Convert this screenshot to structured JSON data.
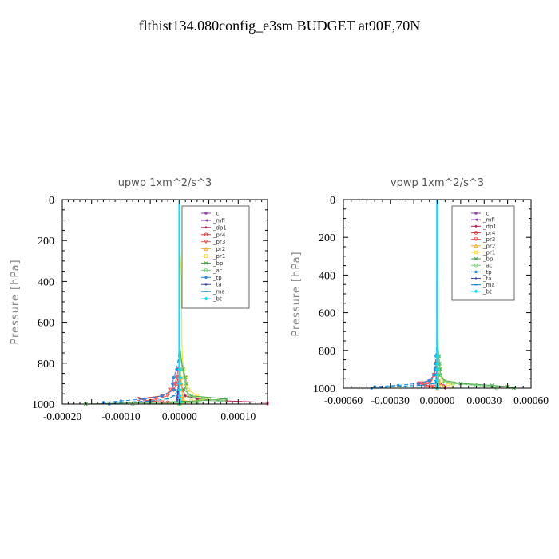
{
  "page": {
    "title": "flthist134.080config_e3sm  BUDGET at90E,70N"
  },
  "legend": {
    "entries": [
      {
        "label": "_cl",
        "color": "#8e44ad",
        "marker": "circle"
      },
      {
        "label": "_mfl",
        "color": "#7b1fa2",
        "marker": "triangle-left"
      },
      {
        "label": "_dp1",
        "color": "#c2185b",
        "marker": "diamond"
      },
      {
        "label": "_pr4",
        "color": "#e53935",
        "marker": "circle-open"
      },
      {
        "label": "_pr3",
        "color": "#ff5252",
        "marker": "triangle-down"
      },
      {
        "label": "_pr2",
        "color": "#ffa726",
        "marker": "triangle-up"
      },
      {
        "label": "_pr1",
        "color": "#fdd835",
        "marker": "square-open"
      },
      {
        "label": "_bp",
        "color": "#43a047",
        "marker": "cross"
      },
      {
        "label": "_ac",
        "color": "#76d275",
        "marker": "circle-open"
      },
      {
        "label": "_tp",
        "color": "#1e88e5",
        "marker": "star"
      },
      {
        "label": "_ta",
        "color": "#3949ab",
        "marker": "plus"
      },
      {
        "label": "_ma",
        "color": "#0288d1",
        "marker": "dash"
      },
      {
        "label": "_bt",
        "color": "#00e5ff",
        "marker": "diamond-filled"
      }
    ]
  },
  "chart_data": [
    {
      "type": "line",
      "title": "upwp   1xm^2/s^3",
      "xlabel": "",
      "ylabel": "Pressure [hPa]",
      "xlim": [
        -0.0002,
        0.00015
      ],
      "ylim": [
        1000,
        0
      ],
      "xticks": [
        -0.0002,
        -0.0001,
        0.0,
        0.0001
      ],
      "xtick_labels": [
        "-0.00020",
        "-0.00010",
        "0.00000",
        "0.00010"
      ],
      "yticks": [
        0,
        200,
        400,
        600,
        800,
        1000
      ],
      "ytick_labels": [
        "0",
        "200",
        "400",
        "600",
        "800",
        "1000"
      ],
      "y": [
        0,
        100,
        200,
        300,
        400,
        500,
        600,
        700,
        780,
        830,
        870,
        900,
        930,
        960,
        975,
        985,
        992,
        1000
      ],
      "series": [
        {
          "name": "_cl",
          "values": [
            0,
            0,
            0,
            0,
            0,
            0,
            0,
            0,
            0,
            0,
            0,
            0,
            0,
            0,
            0,
            0,
            0,
            0
          ]
        },
        {
          "name": "_mfl",
          "values": [
            0,
            0,
            0,
            0,
            0,
            0,
            0,
            0,
            0,
            0,
            0,
            -1e-06,
            -2e-06,
            -3e-06,
            -4e-06,
            -3e-06,
            -2e-06,
            0
          ]
        },
        {
          "name": "_dp1",
          "values": [
            0,
            0,
            0,
            0,
            0,
            0,
            0,
            0,
            0,
            1e-06,
            2e-06,
            3e-06,
            5e-06,
            1e-05,
            3e-05,
            8e-05,
            0.00015,
            0.00015
          ]
        },
        {
          "name": "_pr4",
          "values": [
            0,
            0,
            0,
            0,
            0,
            0,
            0,
            0,
            0,
            0,
            -2e-06,
            -5e-06,
            -1e-05,
            -3e-05,
            -7e-05,
            -5e-05,
            -2e-05,
            0
          ]
        },
        {
          "name": "_pr3",
          "values": [
            0,
            0,
            0,
            0,
            0,
            0,
            0,
            0,
            0,
            -2e-06,
            -5e-06,
            -8e-06,
            -1.5e-05,
            -2e-05,
            -4e-05,
            -6e-05,
            -3e-05,
            0
          ]
        },
        {
          "name": "_pr2",
          "values": [
            0,
            0,
            0,
            0,
            0,
            0,
            0,
            0,
            0,
            1e-06,
            2e-06,
            3e-06,
            4e-06,
            5e-06,
            6e-06,
            5e-06,
            3e-06,
            0
          ]
        },
        {
          "name": "_pr1",
          "values": [
            0,
            0,
            0,
            2e-06,
            3e-06,
            3e-06,
            4e-06,
            4e-06,
            5e-06,
            7e-06,
            1e-05,
            1.2e-05,
            1.5e-05,
            3e-05,
            5e-05,
            2e-05,
            1e-05,
            0
          ]
        },
        {
          "name": "_bp",
          "values": [
            0,
            0,
            0,
            0,
            0,
            0,
            0,
            0,
            3e-06,
            6e-06,
            1e-05,
            1.2e-05,
            8e-06,
            2e-05,
            8e-05,
            3e-05,
            -5e-05,
            -0.00016
          ]
        },
        {
          "name": "_ac",
          "values": [
            0,
            0,
            0,
            0,
            0,
            0,
            0,
            0,
            2e-06,
            5e-06,
            8e-06,
            1e-05,
            1.2e-05,
            1.5e-05,
            4e-05,
            8e-05,
            3e-05,
            -8e-05
          ]
        },
        {
          "name": "_tp",
          "values": [
            0,
            0,
            0,
            0,
            0,
            0,
            0,
            0,
            -2e-06,
            -5e-06,
            -1e-05,
            -1.2e-05,
            -1e-05,
            -3e-05,
            -6e-05,
            -0.0001,
            -0.00013,
            -0.00012
          ]
        },
        {
          "name": "_ta",
          "values": [
            0,
            0,
            0,
            0,
            0,
            0,
            0,
            0,
            0,
            0,
            0,
            0,
            0,
            0,
            0,
            0,
            0,
            0
          ]
        },
        {
          "name": "_ma",
          "values": [
            0,
            0,
            0,
            0,
            0,
            0,
            0,
            0,
            0,
            0,
            0,
            -1e-06,
            -2e-06,
            -1e-05,
            -2e-05,
            -5e-05,
            -0.0001,
            -0.00012
          ]
        },
        {
          "name": "_bt",
          "values": [
            0,
            0,
            0,
            0,
            0,
            0,
            0,
            0,
            0,
            0,
            0,
            0,
            0,
            0,
            0,
            0,
            0,
            0
          ]
        }
      ]
    },
    {
      "type": "line",
      "title": "vpwp   1xm^2/s^3",
      "xlabel": "",
      "ylabel": "Pressure [hPa]",
      "xlim": [
        -0.0006,
        0.0006
      ],
      "ylim": [
        1000,
        0
      ],
      "xticks": [
        -0.0006,
        -0.0003,
        0.0,
        0.0003,
        0.0006
      ],
      "xtick_labels": [
        "-0.00060",
        "-0.00030",
        "0.00000",
        "0.00030",
        "0.00060"
      ],
      "yticks": [
        0,
        200,
        400,
        600,
        800,
        1000
      ],
      "ytick_labels": [
        "0",
        "200",
        "400",
        "600",
        "800",
        "1000"
      ],
      "y": [
        0,
        100,
        200,
        300,
        400,
        500,
        600,
        700,
        780,
        830,
        870,
        900,
        930,
        960,
        975,
        985,
        992,
        1000
      ],
      "series": [
        {
          "name": "_cl",
          "values": [
            0,
            0,
            0,
            0,
            0,
            0,
            0,
            0,
            0,
            0,
            0,
            0,
            0,
            0,
            0,
            0,
            0,
            0
          ]
        },
        {
          "name": "_mfl",
          "values": [
            0,
            0,
            0,
            0,
            0,
            0,
            0,
            0,
            0,
            0,
            0,
            0,
            -3e-06,
            -5e-06,
            -6e-06,
            -4e-06,
            -2e-06,
            0
          ]
        },
        {
          "name": "_dp1",
          "values": [
            0,
            0,
            0,
            0,
            0,
            0,
            0,
            0,
            0,
            0,
            2e-06,
            5e-06,
            8e-06,
            1e-05,
            2e-05,
            4e-05,
            5e-05,
            5e-05
          ]
        },
        {
          "name": "_pr4",
          "values": [
            0,
            0,
            0,
            0,
            0,
            0,
            0,
            0,
            0,
            0,
            -5e-06,
            -1e-05,
            -2e-05,
            -5e-05,
            -0.00012,
            -6e-05,
            -2e-05,
            0
          ]
        },
        {
          "name": "_pr3",
          "values": [
            0,
            0,
            0,
            0,
            0,
            0,
            0,
            0,
            0,
            0,
            -5e-06,
            -1e-05,
            -2e-05,
            -4e-05,
            -0.0001,
            -8e-05,
            -3e-05,
            0
          ]
        },
        {
          "name": "_pr2",
          "values": [
            0,
            0,
            0,
            0,
            0,
            0,
            0,
            0,
            0,
            0,
            2e-06,
            4e-06,
            6e-06,
            1e-05,
            1.5e-05,
            1e-05,
            5e-06,
            0
          ]
        },
        {
          "name": "_pr1",
          "values": [
            0,
            0,
            0,
            2e-06,
            4e-06,
            5e-06,
            5e-06,
            6e-06,
            8e-06,
            1e-05,
            1.2e-05,
            1.5e-05,
            2e-05,
            3e-05,
            0.0001,
            7e-05,
            3e-05,
            0
          ]
        },
        {
          "name": "_bp",
          "values": [
            0,
            0,
            0,
            0,
            0,
            0,
            0,
            0,
            4e-06,
            1e-05,
            1.5e-05,
            2e-05,
            2e-05,
            5e-05,
            0.00015,
            0.00035,
            0.00045,
            0.00049
          ]
        },
        {
          "name": "_ac",
          "values": [
            0,
            0,
            0,
            0,
            0,
            0,
            0,
            0,
            3e-06,
            8e-06,
            1.2e-05,
            1.5e-05,
            2e-05,
            4e-05,
            0.0001,
            0.00025,
            0.00035,
            0.00038
          ]
        },
        {
          "name": "_tp",
          "values": [
            0,
            0,
            0,
            0,
            0,
            0,
            0,
            0,
            -3e-06,
            -8e-06,
            -1.2e-05,
            -1.5e-05,
            -2e-05,
            -5e-05,
            -0.00012,
            -0.00025,
            -0.0004,
            -0.00042
          ]
        },
        {
          "name": "_ta",
          "values": [
            0,
            0,
            0,
            0,
            0,
            0,
            0,
            0,
            0,
            0,
            0,
            0,
            0,
            0,
            0,
            0,
            0,
            0
          ]
        },
        {
          "name": "_ma",
          "values": [
            0,
            0,
            0,
            0,
            0,
            0,
            0,
            0,
            0,
            0,
            0,
            0,
            -2e-06,
            -8e-06,
            -2e-05,
            -0.0001,
            -0.0003,
            -0.00038
          ]
        },
        {
          "name": "_bt",
          "values": [
            0,
            0,
            0,
            0,
            0,
            0,
            0,
            0,
            0,
            0,
            0,
            0,
            0,
            0,
            0,
            0,
            0,
            0
          ]
        }
      ]
    }
  ]
}
